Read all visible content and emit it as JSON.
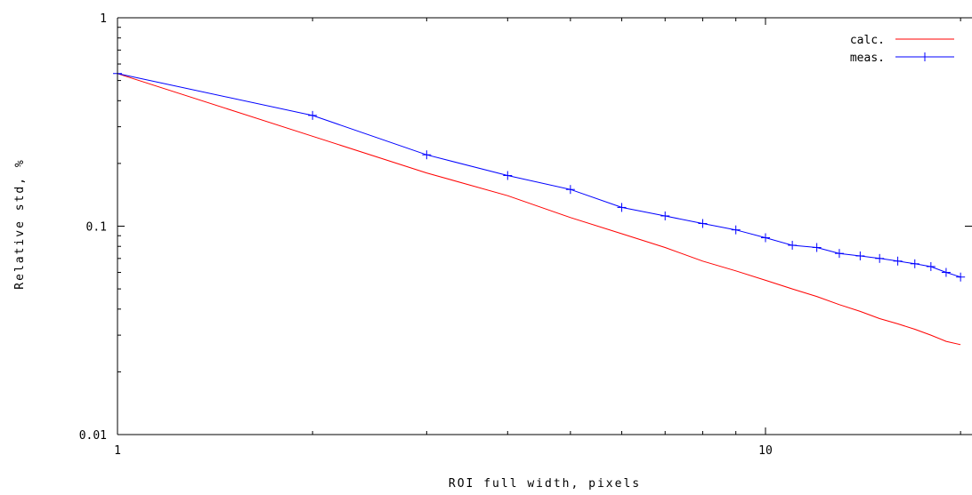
{
  "chart_data": {
    "type": "line",
    "title": "",
    "xlabel": "ROI full width, pixels",
    "ylabel": "Relative std, %",
    "xscale": "log",
    "yscale": "log",
    "xlim": [
      1,
      20
    ],
    "ylim": [
      0.01,
      1
    ],
    "x_ticks": [
      {
        "value": 1,
        "label": "1"
      },
      {
        "value": 10,
        "label": "10"
      }
    ],
    "y_ticks": [
      {
        "value": 1,
        "label": "1"
      },
      {
        "value": 0.1,
        "label": "0.1"
      },
      {
        "value": 0.01,
        "label": "0.01"
      }
    ],
    "grid": false,
    "legend_position": "top-right",
    "series": [
      {
        "name": "calc.",
        "color": "#ff0000",
        "marker": "none",
        "x": [
          1,
          2,
          3,
          4,
          5,
          6,
          7,
          8,
          9,
          10,
          11,
          12,
          13,
          14,
          15,
          16,
          17,
          18,
          19,
          20
        ],
        "y": [
          0.54,
          0.27,
          0.18,
          0.14,
          0.11,
          0.092,
          0.079,
          0.068,
          0.061,
          0.055,
          0.05,
          0.046,
          0.042,
          0.039,
          0.036,
          0.034,
          0.032,
          0.03,
          0.028,
          0.027
        ]
      },
      {
        "name": "meas.",
        "color": "#0000ff",
        "marker": "plus",
        "x": [
          1,
          2,
          3,
          4,
          5,
          6,
          7,
          8,
          9,
          10,
          11,
          12,
          13,
          14,
          15,
          16,
          17,
          18,
          19,
          20
        ],
        "y": [
          0.54,
          0.34,
          0.22,
          0.175,
          0.15,
          0.123,
          0.112,
          0.103,
          0.096,
          0.088,
          0.081,
          0.079,
          0.074,
          0.072,
          0.07,
          0.068,
          0.066,
          0.064,
          0.06,
          0.057
        ]
      }
    ]
  }
}
